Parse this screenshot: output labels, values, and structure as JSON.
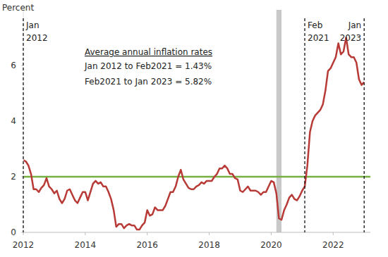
{
  "chart_data": {
    "type": "line",
    "y_label": "Percent",
    "xlim": [
      2012,
      2023.2
    ],
    "xticks": [
      2012,
      2014,
      2016,
      2018,
      2020,
      2022
    ],
    "ylim": [
      0,
      8
    ],
    "yticks": [
      0,
      2,
      4,
      6
    ],
    "grid": false,
    "x": [
      2012,
      2012.083,
      2012.167,
      2012.25,
      2012.333,
      2012.417,
      2012.5,
      2012.583,
      2012.667,
      2012.75,
      2012.833,
      2012.917,
      2013,
      2013.083,
      2013.167,
      2013.25,
      2013.333,
      2013.417,
      2013.5,
      2013.583,
      2013.667,
      2013.75,
      2013.833,
      2013.917,
      2014,
      2014.083,
      2014.167,
      2014.25,
      2014.333,
      2014.417,
      2014.5,
      2014.583,
      2014.667,
      2014.75,
      2014.833,
      2014.917,
      2015,
      2015.083,
      2015.167,
      2015.25,
      2015.333,
      2015.417,
      2015.5,
      2015.583,
      2015.667,
      2015.75,
      2015.833,
      2015.917,
      2016,
      2016.083,
      2016.167,
      2016.25,
      2016.333,
      2016.417,
      2016.5,
      2016.583,
      2016.667,
      2016.75,
      2016.833,
      2016.917,
      2017,
      2017.083,
      2017.167,
      2017.25,
      2017.333,
      2017.417,
      2017.5,
      2017.583,
      2017.667,
      2017.75,
      2017.833,
      2017.917,
      2018,
      2018.083,
      2018.167,
      2018.25,
      2018.333,
      2018.417,
      2018.5,
      2018.583,
      2018.667,
      2018.75,
      2018.833,
      2018.917,
      2019,
      2019.083,
      2019.167,
      2019.25,
      2019.333,
      2019.417,
      2019.5,
      2019.583,
      2019.667,
      2019.75,
      2019.833,
      2019.917,
      2020,
      2020.083,
      2020.167,
      2020.25,
      2020.333,
      2020.417,
      2020.5,
      2020.583,
      2020.667,
      2020.75,
      2020.833,
      2020.917,
      2021,
      2021.083,
      2021.167,
      2021.25,
      2021.333,
      2021.417,
      2021.5,
      2021.583,
      2021.667,
      2021.75,
      2021.833,
      2021.917,
      2022,
      2022.083,
      2022.167,
      2022.25,
      2022.333,
      2022.417,
      2022.5,
      2022.583,
      2022.667,
      2022.75,
      2022.833,
      2022.917,
      2023
    ],
    "series": [
      {
        "color": "#b83a36",
        "values": [
          2.6,
          2.55,
          2.4,
          2.1,
          1.55,
          1.55,
          1.45,
          1.6,
          1.7,
          1.95,
          1.65,
          1.55,
          1.4,
          1.5,
          1.2,
          1.05,
          1.2,
          1.5,
          1.55,
          1.35,
          1.15,
          1.05,
          1.25,
          1.45,
          1.45,
          1.15,
          1.45,
          1.75,
          1.85,
          1.75,
          1.8,
          1.65,
          1.65,
          1.45,
          1.2,
          0.8,
          0.2,
          0.3,
          0.3,
          0.15,
          0.25,
          0.3,
          0.25,
          0.25,
          0.1,
          0.1,
          0.25,
          0.35,
          0.8,
          0.6,
          0.65,
          0.9,
          0.8,
          0.8,
          0.8,
          0.95,
          1.2,
          1.45,
          1.45,
          1.65,
          2.0,
          2.25,
          1.9,
          1.75,
          1.6,
          1.55,
          1.55,
          1.65,
          1.7,
          1.8,
          1.75,
          1.85,
          1.85,
          1.85,
          2.0,
          2.1,
          2.3,
          2.3,
          2.4,
          2.3,
          2.1,
          2.1,
          1.95,
          1.9,
          1.5,
          1.45,
          1.55,
          1.65,
          1.5,
          1.5,
          1.5,
          1.45,
          1.35,
          1.45,
          1.45,
          1.65,
          1.85,
          1.8,
          1.4,
          0.5,
          0.45,
          0.8,
          1.0,
          1.25,
          1.35,
          1.2,
          1.15,
          1.3,
          1.5,
          1.65,
          2.4,
          3.6,
          4.0,
          4.2,
          4.3,
          4.4,
          4.6,
          5.1,
          5.8,
          5.9,
          6.1,
          6.3,
          6.8,
          6.4,
          6.5,
          7.0,
          6.4,
          6.3,
          6.3,
          6.1,
          5.5,
          5.3,
          5.4
        ]
      }
    ],
    "hlines": [
      {
        "value": 2,
        "color": "#76b041"
      }
    ],
    "recession": [
      2020.167,
      2020.333
    ],
    "vlines": [
      {
        "value": 2012,
        "label": [
          "Jan",
          "2012"
        ]
      },
      {
        "value": 2021.083,
        "label": [
          "Feb",
          "2021"
        ]
      },
      {
        "value": 2023,
        "label": [
          "Jan",
          "2023"
        ]
      }
    ],
    "annotation": {
      "heading": "Average annual inflation rates",
      "lines": [
        "Jan 2012 to Feb2021 = 1.43%",
        "Feb2021 to Jan 2023 = 5.82%"
      ]
    }
  }
}
